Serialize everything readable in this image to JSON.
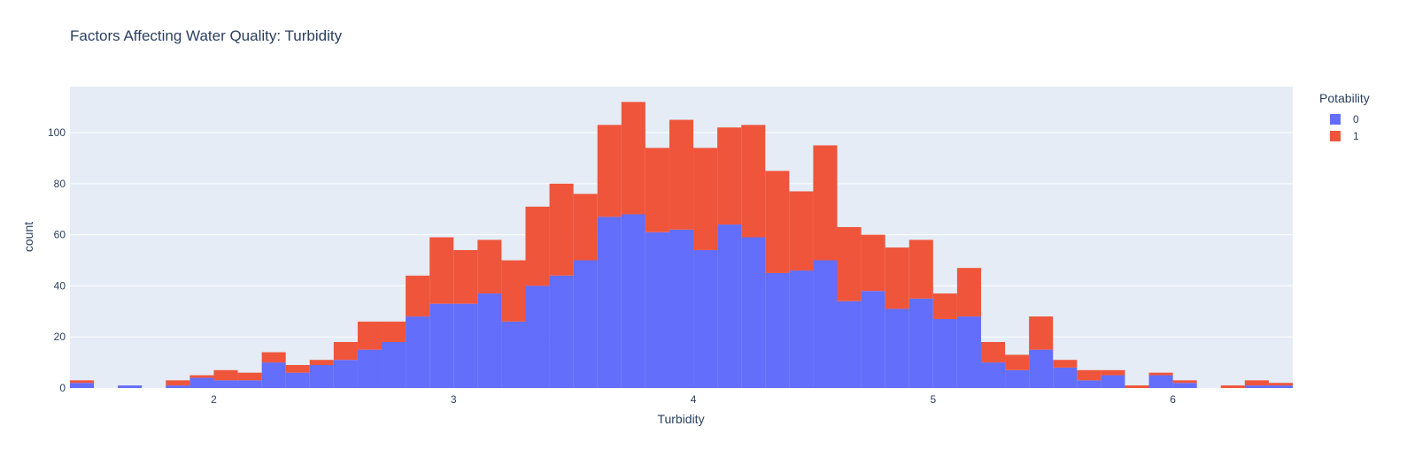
{
  "chart_data": {
    "type": "bar",
    "title": "Factors Affecting Water Quality: Turbidity",
    "xlabel": "Turbidity",
    "ylabel": "count",
    "barmode": "stack",
    "bin_width": 0.1,
    "x_start": 1.4,
    "xlim": [
      1.4,
      6.5
    ],
    "ylim": [
      0,
      118
    ],
    "x_ticks": [
      2,
      3,
      4,
      5,
      6
    ],
    "y_ticks": [
      0,
      20,
      40,
      60,
      80,
      100
    ],
    "grid": true,
    "legend_title": "Potability",
    "legend_position": "top-right",
    "series": [
      {
        "name": "0",
        "color": "#636efa",
        "values": [
          2,
          0,
          1,
          0,
          1,
          4,
          3,
          3,
          10,
          6,
          9,
          11,
          15,
          18,
          28,
          33,
          33,
          37,
          26,
          40,
          44,
          50,
          67,
          68,
          61,
          62,
          54,
          64,
          59,
          45,
          46,
          50,
          34,
          38,
          31,
          35,
          27,
          28,
          10,
          7,
          15,
          8,
          3,
          5,
          0,
          5,
          2,
          0,
          0,
          1,
          1
        ]
      },
      {
        "name": "1",
        "color": "#ef553b",
        "values": [
          1,
          0,
          0,
          0,
          2,
          1,
          4,
          3,
          4,
          3,
          2,
          7,
          11,
          8,
          16,
          26,
          21,
          21,
          24,
          31,
          36,
          26,
          36,
          44,
          33,
          43,
          40,
          38,
          44,
          40,
          31,
          45,
          29,
          22,
          24,
          23,
          10,
          19,
          8,
          6,
          13,
          3,
          4,
          2,
          1,
          1,
          1,
          0,
          1,
          2,
          1
        ]
      }
    ]
  }
}
